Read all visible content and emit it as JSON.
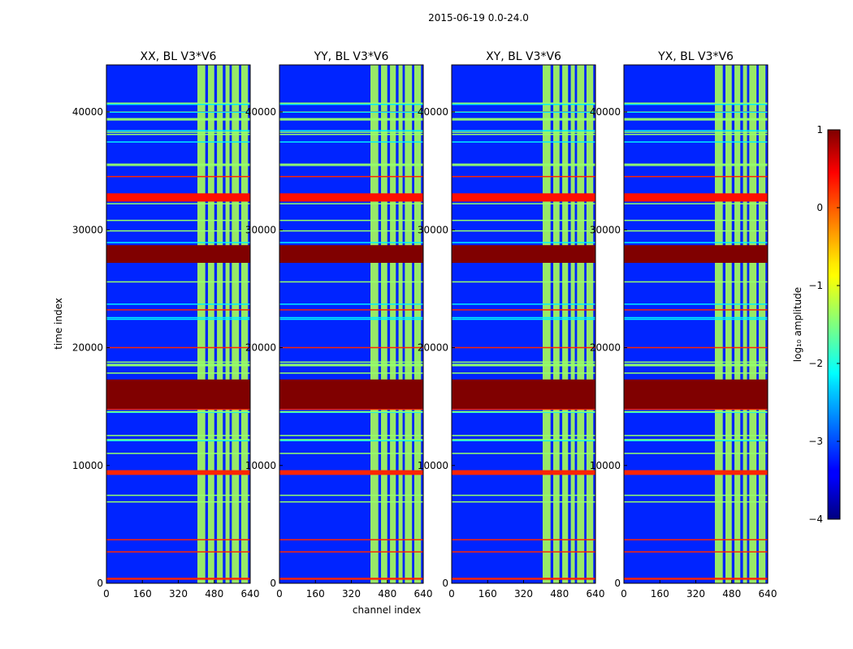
{
  "chart_data": {
    "type": "heatmap",
    "suptitle": "2015-06-19 0.0-24.0",
    "xlabel": "channel index",
    "ylabel": "time index",
    "x_range": [
      0,
      640
    ],
    "y_range": [
      0,
      44000
    ],
    "x_ticks": [
      "0",
      "160",
      "320",
      "480",
      "640"
    ],
    "y_ticks": [
      "0",
      "10000",
      "20000",
      "30000",
      "40000"
    ],
    "panels": [
      {
        "title": "XX, BL V3*V6",
        "polarization": "XX"
      },
      {
        "title": "YY, BL V3*V6",
        "polarization": "YY"
      },
      {
        "title": "XY, BL V3*V6",
        "polarization": "XY"
      },
      {
        "title": "YX, BL V3*V6",
        "polarization": "YX"
      }
    ],
    "background_log_amplitude": -3.2,
    "rfi_channel_bands": [
      [
        405,
        440
      ],
      [
        452,
        480
      ],
      [
        492,
        518
      ],
      [
        530,
        548
      ],
      [
        558,
        590
      ],
      [
        600,
        630
      ]
    ],
    "rfi_band_log_amplitude": -1.3,
    "flagged_time_ranges": [
      {
        "start": 14800,
        "end": 17300,
        "log_amplitude": 1.0
      },
      {
        "start": 27200,
        "end": 28700,
        "log_amplitude": 1.0
      },
      {
        "start": 9200,
        "end": 9600,
        "log_amplitude": 0.2
      },
      {
        "start": 32400,
        "end": 33100,
        "log_amplitude": 0.3
      }
    ],
    "colorbar": {
      "label": "log₁₀ amplitude",
      "range": [
        -4,
        1
      ],
      "ticks": [
        "1",
        "0",
        "−1",
        "−2",
        "−3",
        "−4"
      ],
      "colormap": "jet"
    }
  }
}
